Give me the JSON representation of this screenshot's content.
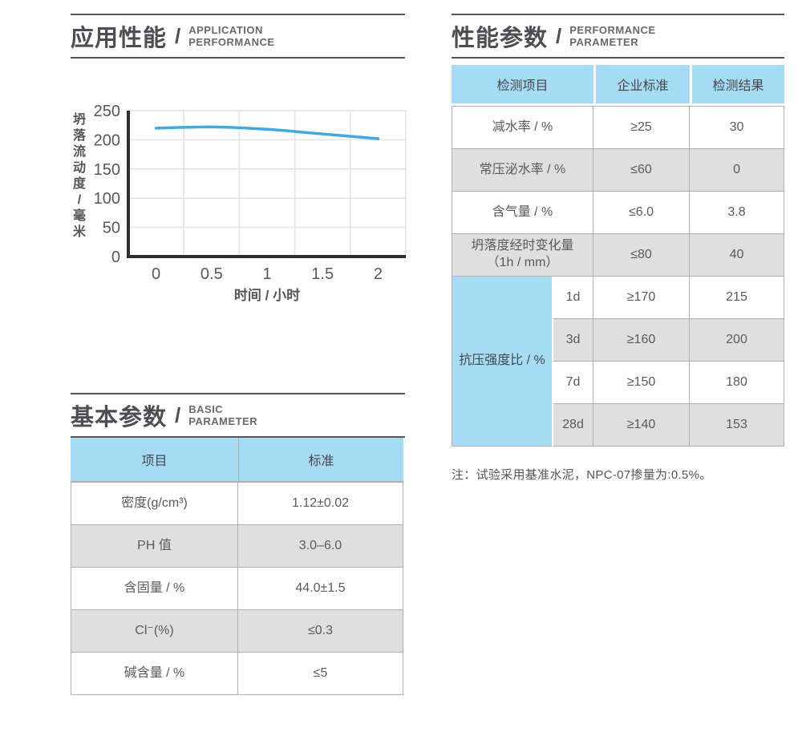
{
  "colors": {
    "accent_blue": "#a6dcf3",
    "row_gray": "#dfdfdf",
    "grid_line": "#b0b0b0",
    "rule_dark": "#55565a",
    "text_dark": "#4d4e52",
    "text_body": "#595a5c",
    "chart_line": "#42a9df",
    "chart_axis": "#332e2d",
    "chart_grid": "#e2e2e2"
  },
  "sections": {
    "application": {
      "title_cn": "应用性能",
      "slash": "/",
      "title_en_line1": "APPLICATION",
      "title_en_line2": "PERFORMANCE"
    },
    "basic": {
      "title_cn": "基本参数",
      "slash": "/",
      "title_en_line1": "BASIC",
      "title_en_line2": "PARAMETER"
    },
    "performance": {
      "title_cn": "性能参数",
      "slash": "/",
      "title_en_line1": "PERFORMANCE",
      "title_en_line2": "PARAMETER"
    }
  },
  "chart_data": {
    "type": "line",
    "x": [
      0,
      0.5,
      1,
      1.5,
      2
    ],
    "series": [
      {
        "name": "坍落流动度",
        "values": [
          220,
          222,
          218,
          210,
          202
        ]
      }
    ],
    "xlabel": "时间 / 小时",
    "ylabel": "坍落流动度/毫米",
    "xticks": [
      "0",
      "0.5",
      "1",
      "1.5",
      "2"
    ],
    "yticks": [
      0,
      50,
      100,
      150,
      200,
      250
    ],
    "ylim": [
      0,
      250
    ],
    "grid": true,
    "legend": "none"
  },
  "basic_table": {
    "headers": [
      "项目",
      "标准"
    ],
    "rows": [
      [
        "密度(g/cm³)",
        "1.12±0.02"
      ],
      [
        "PH 值",
        "3.0–6.0"
      ],
      [
        "含固量 / %",
        "44.0±1.5"
      ],
      [
        "Cl⁻(%)",
        "≤0.3"
      ],
      [
        "碱含量 / %",
        "≤5"
      ]
    ]
  },
  "performance_table": {
    "headers": [
      "检测项目",
      "企业标准",
      "检测结果"
    ],
    "rows": [
      {
        "item": "减水率 / %",
        "standard": "≥25",
        "result": "30"
      },
      {
        "item": "常压泌水率 / %",
        "standard": "≤60",
        "result": "0"
      },
      {
        "item": "含气量 / %",
        "standard": "≤6.0",
        "result": "3.8"
      },
      {
        "item": "坍落度经时变化量\n（1h / mm）",
        "standard": "≤80",
        "result": "40"
      }
    ],
    "group": {
      "item": "抗压强度比 / %",
      "sub_rows": [
        {
          "age": "1d",
          "standard": "≥170",
          "result": "215"
        },
        {
          "age": "3d",
          "standard": "≥160",
          "result": "200"
        },
        {
          "age": "7d",
          "standard": "≥150",
          "result": "180"
        },
        {
          "age": "28d",
          "standard": "≥140",
          "result": "153"
        }
      ]
    }
  },
  "note": "注：试验采用基准水泥，NPC-07掺量为:0.5%。"
}
